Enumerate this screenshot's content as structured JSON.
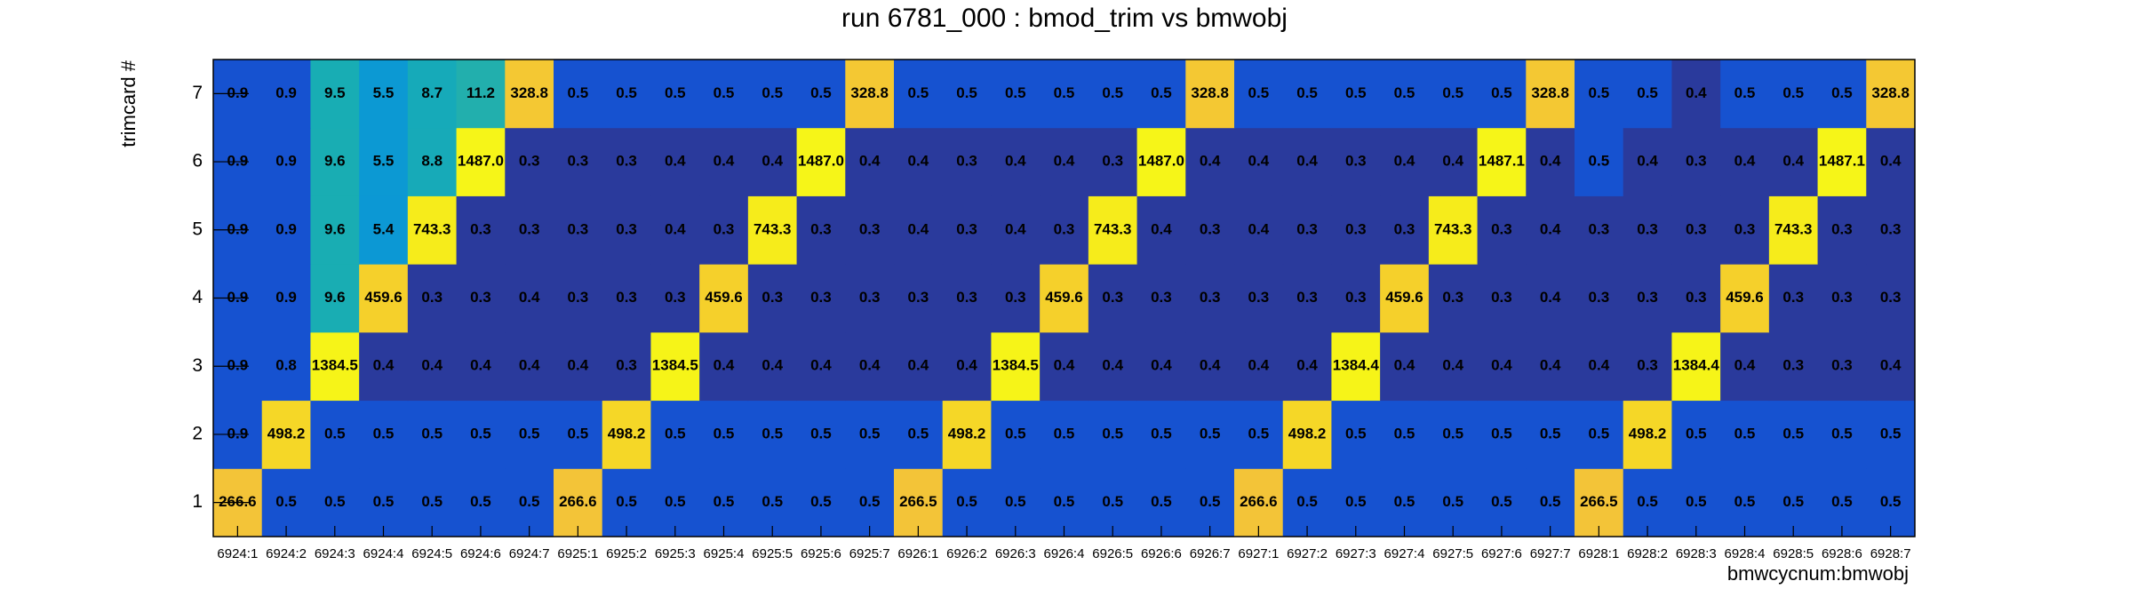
{
  "chart_data": {
    "type": "heatmap",
    "title": "run 6781_000 : bmod_trim vs bmwobj",
    "x_label": "bmwcycnum:bmwobj",
    "y_label": "trimcard #",
    "z_log": true,
    "x_categories": [
      "6924:1",
      "6924:2",
      "6924:3",
      "6924:4",
      "6924:5",
      "6924:6",
      "6924:7",
      "6925:1",
      "6925:2",
      "6925:3",
      "6925:4",
      "6925:5",
      "6925:6",
      "6925:7",
      "6926:1",
      "6926:2",
      "6926:3",
      "6926:4",
      "6926:5",
      "6926:6",
      "6926:7",
      "6927:1",
      "6927:2",
      "6927:3",
      "6927:4",
      "6927:5",
      "6927:6",
      "6927:7",
      "6928:1",
      "6928:2",
      "6928:3",
      "6928:4",
      "6928:5",
      "6928:6",
      "6928:7"
    ],
    "y_categories": [
      "1",
      "2",
      "3",
      "4",
      "5",
      "6",
      "7"
    ],
    "values": [
      [
        266.6,
        0.5,
        0.5,
        0.5,
        0.5,
        0.5,
        0.5,
        266.6,
        0.5,
        0.5,
        0.5,
        0.5,
        0.5,
        0.5,
        266.5,
        0.5,
        0.5,
        0.5,
        0.5,
        0.5,
        0.5,
        266.6,
        0.5,
        0.5,
        0.5,
        0.5,
        0.5,
        0.5,
        266.5,
        0.5,
        0.5,
        0.5,
        0.5,
        0.5,
        0.5
      ],
      [
        0.9,
        498.2,
        0.5,
        0.5,
        0.5,
        0.5,
        0.5,
        0.5,
        498.2,
        0.5,
        0.5,
        0.5,
        0.5,
        0.5,
        0.5,
        498.2,
        0.5,
        0.5,
        0.5,
        0.5,
        0.5,
        0.5,
        498.2,
        0.5,
        0.5,
        0.5,
        0.5,
        0.5,
        0.5,
        498.2,
        0.5,
        0.5,
        0.5,
        0.5,
        0.5
      ],
      [
        0.9,
        0.8,
        1384.5,
        0.4,
        0.4,
        0.4,
        0.4,
        0.4,
        0.3,
        1384.5,
        0.4,
        0.4,
        0.4,
        0.4,
        0.4,
        0.4,
        1384.5,
        0.4,
        0.4,
        0.4,
        0.4,
        0.4,
        0.4,
        1384.4,
        0.4,
        0.4,
        0.4,
        0.4,
        0.4,
        0.3,
        1384.4,
        0.4,
        0.3,
        0.3,
        0.4
      ],
      [
        0.9,
        0.9,
        9.6,
        459.6,
        0.3,
        0.3,
        0.4,
        0.3,
        0.3,
        0.3,
        459.6,
        0.3,
        0.3,
        0.3,
        0.3,
        0.3,
        0.3,
        459.6,
        0.3,
        0.3,
        0.3,
        0.3,
        0.3,
        0.3,
        459.6,
        0.3,
        0.3,
        0.4,
        0.3,
        0.3,
        0.3,
        459.6,
        0.3,
        0.3,
        0.3
      ],
      [
        0.9,
        0.9,
        9.6,
        5.4,
        743.3,
        0.3,
        0.3,
        0.3,
        0.3,
        0.4,
        0.3,
        743.3,
        0.3,
        0.3,
        0.4,
        0.3,
        0.4,
        0.3,
        743.3,
        0.4,
        0.3,
        0.4,
        0.3,
        0.3,
        0.3,
        743.3,
        0.3,
        0.4,
        0.3,
        0.3,
        0.3,
        0.3,
        743.3,
        0.3,
        0.3
      ],
      [
        0.9,
        0.9,
        9.6,
        5.5,
        8.8,
        1487.0,
        0.3,
        0.3,
        0.3,
        0.4,
        0.4,
        0.4,
        1487.0,
        0.4,
        0.4,
        0.3,
        0.4,
        0.4,
        0.3,
        1487.0,
        0.4,
        0.4,
        0.4,
        0.3,
        0.4,
        0.4,
        1487.1,
        0.4,
        0.5,
        0.4,
        0.3,
        0.4,
        0.4,
        1487.1,
        0.4
      ],
      [
        0.9,
        0.9,
        9.5,
        5.5,
        8.7,
        11.2,
        328.8,
        0.5,
        0.5,
        0.5,
        0.5,
        0.5,
        0.5,
        328.8,
        0.5,
        0.5,
        0.5,
        0.5,
        0.5,
        0.5,
        328.8,
        0.5,
        0.5,
        0.5,
        0.5,
        0.5,
        0.5,
        328.8,
        0.5,
        0.5,
        0.4,
        0.5,
        0.5,
        0.5,
        328.8
      ]
    ],
    "value_labels": [
      [
        "266.6",
        "0.5",
        "0.5",
        "0.5",
        "0.5",
        "0.5",
        "0.5",
        "266.6",
        "0.5",
        "0.5",
        "0.5",
        "0.5",
        "0.5",
        "0.5",
        "266.5",
        "0.5",
        "0.5",
        "0.5",
        "0.5",
        "0.5",
        "0.5",
        "266.6",
        "0.5",
        "0.5",
        "0.5",
        "0.5",
        "0.5",
        "0.5",
        "266.5",
        "0.5",
        "0.5",
        "0.5",
        "0.5",
        "0.5",
        "0.5"
      ],
      [
        "0.9",
        "498.2",
        "0.5",
        "0.5",
        "0.5",
        "0.5",
        "0.5",
        "0.5",
        "498.2",
        "0.5",
        "0.5",
        "0.5",
        "0.5",
        "0.5",
        "0.5",
        "498.2",
        "0.5",
        "0.5",
        "0.5",
        "0.5",
        "0.5",
        "0.5",
        "498.2",
        "0.5",
        "0.5",
        "0.5",
        "0.5",
        "0.5",
        "0.5",
        "498.2",
        "0.5",
        "0.5",
        "0.5",
        "0.5",
        "0.5"
      ],
      [
        "0.9",
        "0.8",
        "1384.5",
        "0.4",
        "0.4",
        "0.4",
        "0.4",
        "0.4",
        "0.3",
        "1384.5",
        "0.4",
        "0.4",
        "0.4",
        "0.4",
        "0.4",
        "0.4",
        "1384.5",
        "0.4",
        "0.4",
        "0.4",
        "0.4",
        "0.4",
        "0.4",
        "1384.4",
        "0.4",
        "0.4",
        "0.4",
        "0.4",
        "0.4",
        "0.3",
        "1384.4",
        "0.4",
        "0.3",
        "0.3",
        "0.4"
      ],
      [
        "0.9",
        "0.9",
        "9.6",
        "459.6",
        "0.3",
        "0.3",
        "0.4",
        "0.3",
        "0.3",
        "0.3",
        "459.6",
        "0.3",
        "0.3",
        "0.3",
        "0.3",
        "0.3",
        "0.3",
        "459.6",
        "0.3",
        "0.3",
        "0.3",
        "0.3",
        "0.3",
        "0.3",
        "459.6",
        "0.3",
        "0.3",
        "0.4",
        "0.3",
        "0.3",
        "0.3",
        "459.6",
        "0.3",
        "0.3",
        "0.3"
      ],
      [
        "0.9",
        "0.9",
        "9.6",
        "5.4",
        "743.3",
        "0.3",
        "0.3",
        "0.3",
        "0.3",
        "0.4",
        "0.3",
        "743.3",
        "0.3",
        "0.3",
        "0.4",
        "0.3",
        "0.4",
        "0.3",
        "743.3",
        "0.4",
        "0.3",
        "0.4",
        "0.3",
        "0.3",
        "0.3",
        "743.3",
        "0.3",
        "0.4",
        "0.3",
        "0.3",
        "0.3",
        "0.3",
        "743.3",
        "0.3",
        "0.3"
      ],
      [
        "0.9",
        "0.9",
        "9.6",
        "5.5",
        "8.8",
        "1487.0",
        "0.3",
        "0.3",
        "0.3",
        "0.4",
        "0.4",
        "0.4",
        "1487.0",
        "0.4",
        "0.4",
        "0.3",
        "0.4",
        "0.4",
        "0.3",
        "1487.0",
        "0.4",
        "0.4",
        "0.4",
        "0.3",
        "0.4",
        "0.4",
        "1487.1",
        "0.4",
        "0.5",
        "0.4",
        "0.3",
        "0.4",
        "0.4",
        "1487.1",
        "0.4"
      ],
      [
        "0.9",
        "0.9",
        "9.5",
        "5.5",
        "8.7",
        "11.2",
        "328.8",
        "0.5",
        "0.5",
        "0.5",
        "0.5",
        "0.5",
        "0.5",
        "328.8",
        "0.5",
        "0.5",
        "0.5",
        "0.5",
        "0.5",
        "0.5",
        "328.8",
        "0.5",
        "0.5",
        "0.5",
        "0.5",
        "0.5",
        "0.5",
        "328.8",
        "0.5",
        "0.5",
        "0.4",
        "0.5",
        "0.5",
        "0.5",
        "328.8"
      ]
    ]
  }
}
